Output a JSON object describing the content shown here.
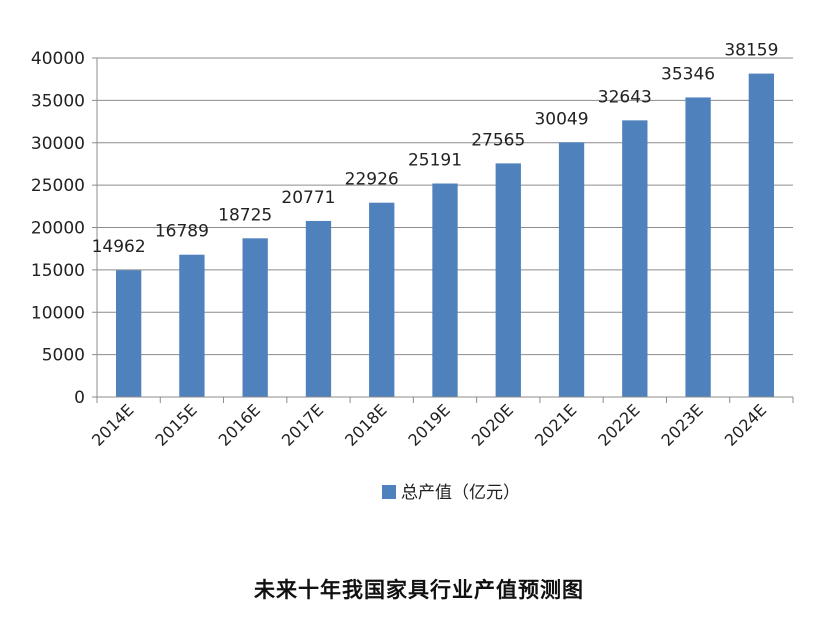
{
  "chart_data": {
    "type": "bar",
    "categories": [
      "2014E",
      "2015E",
      "2016E",
      "2017E",
      "2018E",
      "2019E",
      "2020E",
      "2021E",
      "2022E",
      "2023E",
      "2024E"
    ],
    "series": [
      {
        "name": "总产值（亿元）",
        "values": [
          14962,
          16789,
          18725,
          20771,
          22926,
          25191,
          27565,
          30049,
          32643,
          35346,
          38159
        ],
        "color": "#4f81bd"
      }
    ],
    "ylim": [
      0,
      40000
    ],
    "yticks": [
      0,
      5000,
      10000,
      15000,
      20000,
      25000,
      30000,
      35000,
      40000
    ],
    "grid": true,
    "legend_position": "bottom",
    "data_labels": true
  },
  "caption": "未来十年我国家具行业产值预测图"
}
